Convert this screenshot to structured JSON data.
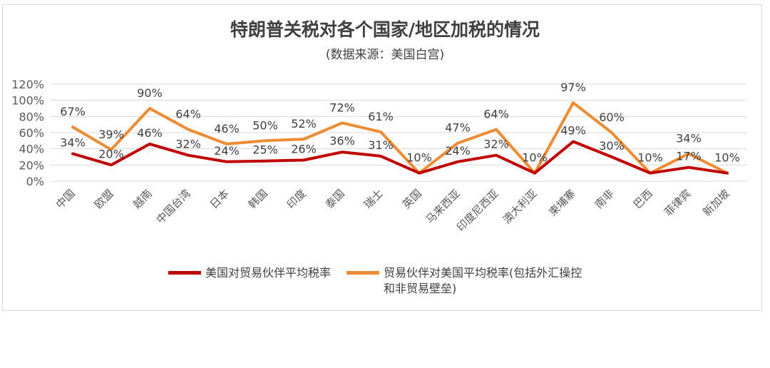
{
  "title": "特朗普关税对各个国家/地区加税的情况",
  "subtitle": "(数据来源：美国白宫)",
  "colors": {
    "us_rate": "#c00000",
    "partner_rate": "#ed8c34",
    "grid": "#d9d9d9",
    "text": "#595959"
  },
  "chart_data": {
    "type": "line",
    "categories": [
      "中国",
      "欧盟",
      "越南",
      "中国台湾",
      "日本",
      "韩国",
      "印度",
      "泰国",
      "瑞士",
      "英国",
      "马来西亚",
      "印度尼西亚",
      "澳大利亚",
      "柬埔寨",
      "南非",
      "巴西",
      "菲律宾",
      "新加坡"
    ],
    "series": [
      {
        "name": "美国对贸易伙伴平均税率",
        "values": [
          34,
          20,
          46,
          32,
          24,
          25,
          26,
          36,
          31,
          10,
          24,
          32,
          10,
          49,
          30,
          10,
          17,
          10
        ],
        "labels": [
          "34%",
          "20%",
          "46%",
          "32%",
          "24%",
          "25%",
          "26%",
          "36%",
          "31%",
          "",
          "24%",
          "32%",
          "",
          "49%",
          "30%",
          "",
          "17%",
          ""
        ]
      },
      {
        "name": "贸易伙伴对美国平均税率(包括外汇操控和非贸易壁垒)",
        "values": [
          67,
          39,
          90,
          64,
          46,
          50,
          52,
          72,
          61,
          10,
          47,
          64,
          10,
          97,
          60,
          10,
          34,
          10
        ],
        "labels": [
          "67%",
          "39%",
          "90%",
          "64%",
          "46%",
          "50%",
          "52%",
          "72%",
          "61%",
          "10%",
          "47%",
          "64%",
          "10%",
          "97%",
          "60%",
          "10%",
          "34%",
          "10%"
        ]
      }
    ],
    "yticks": [
      "0%",
      "20%",
      "40%",
      "60%",
      "80%",
      "100%",
      "120%"
    ],
    "ylim": [
      0,
      120
    ],
    "grid": true,
    "legend_position": "bottom"
  },
  "legend": {
    "us_label": "美国对贸易伙伴平均税率",
    "partner_label_line1": "贸易伙伴对美国平均税率(包括外汇操控",
    "partner_label_line2": "和非贸易壁垒)"
  }
}
